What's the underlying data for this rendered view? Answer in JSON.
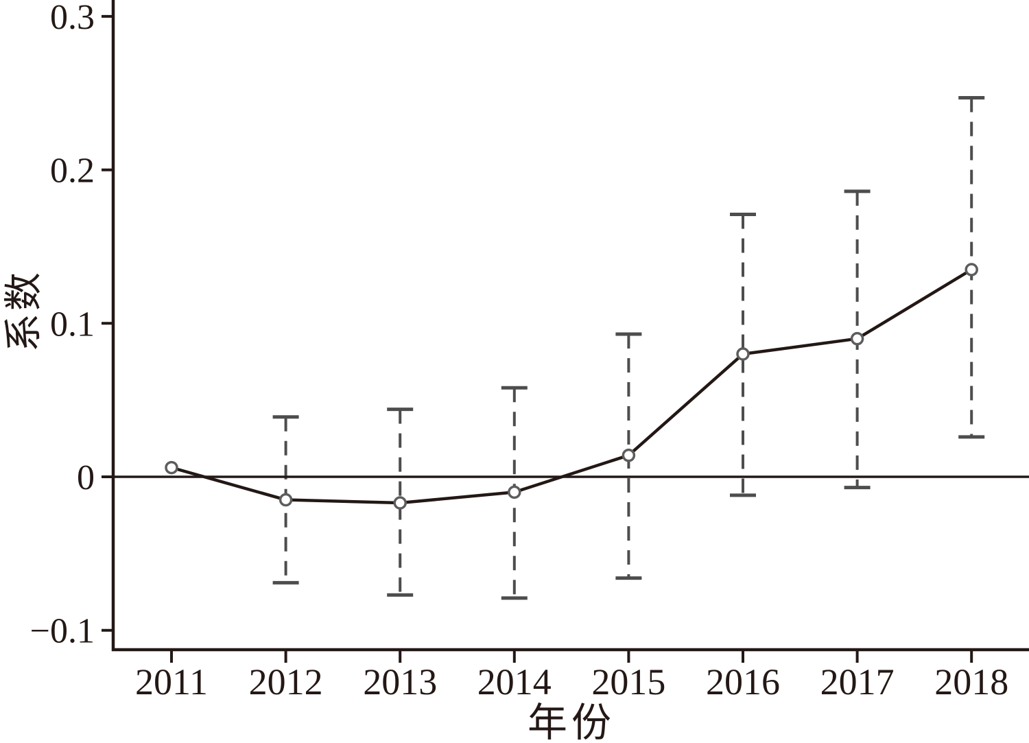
{
  "chart_data": {
    "type": "line",
    "subtype": "event-study-coefficient-plot",
    "title": "",
    "xlabel": "年份",
    "ylabel": "系数",
    "categories": [
      "2011",
      "2012",
      "2013",
      "2014",
      "2015",
      "2016",
      "2017",
      "2018"
    ],
    "series": [
      {
        "name": "系数",
        "values": [
          0.006,
          -0.015,
          -0.017,
          -0.01,
          0.014,
          0.08,
          0.09,
          0.135
        ],
        "ci_lower": [
          null,
          -0.069,
          -0.077,
          -0.079,
          -0.066,
          -0.012,
          -0.007,
          0.026
        ],
        "ci_upper": [
          null,
          0.039,
          0.044,
          0.058,
          0.093,
          0.171,
          0.186,
          0.247
        ]
      }
    ],
    "yticks": [
      0.3,
      0.2,
      0.1,
      0,
      -0.1
    ],
    "ytick_labels": [
      "0.3",
      "0.2",
      "0.1",
      "0",
      "−0.1"
    ],
    "xtick_labels": [
      "2011",
      "2012",
      "2013",
      "2014",
      "2015",
      "2016",
      "2017",
      "2018"
    ],
    "ylim": [
      -0.12,
      0.31
    ],
    "grid": false,
    "legend": "none",
    "zero_line": true,
    "marker": "open-circle",
    "error_bar_style": "dashed-with-caps",
    "colors": {
      "background": "#ffffff",
      "line": "#231815",
      "text": "#231815",
      "axis": "#231815",
      "zero_line": "#231815",
      "marker": "#5d5d5d",
      "error_bar": "#4d4d4d"
    }
  }
}
